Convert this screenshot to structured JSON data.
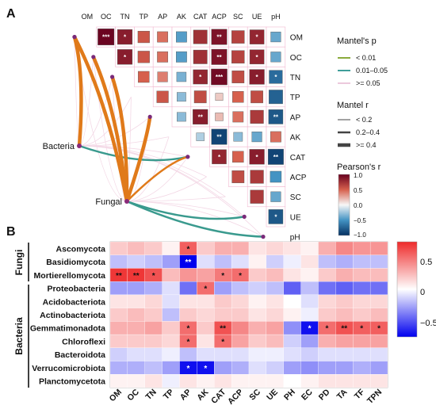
{
  "panel_a": {
    "label": "A",
    "vars": [
      "OM",
      "OC",
      "TN",
      "TP",
      "AP",
      "AK",
      "CAT",
      "ACP",
      "SC",
      "UE",
      "pH"
    ],
    "nodes": [
      "Bacteria",
      "Fungal"
    ],
    "mantel_p_title": "Mantel's p",
    "mantel_p_items": [
      {
        "label": "< 0.01",
        "color": "#8bab3c"
      },
      {
        "label": "0.01–0.05",
        "color": "#3f9e9a"
      },
      {
        "label": ">= 0.05",
        "color": "#f2d9e6"
      }
    ],
    "mantel_r_title": "Mantel r",
    "mantel_r_items": [
      "< 0.2",
      "0.2–0.4",
      ">= 0.4"
    ],
    "colorbar_title": "Pearson's r",
    "colorbar_ticks": [
      "1.0",
      "0.5",
      "0.0",
      "−0.5",
      "−1.0"
    ]
  },
  "panel_b": {
    "label": "B",
    "groups": [
      {
        "label": "Fungi"
      },
      {
        "label": "Bacteria"
      }
    ],
    "colorbar_ticks": [
      "0.5",
      "0",
      "−0.5"
    ]
  },
  "chart_data": [
    {
      "type": "heatmap",
      "panel": "A",
      "description_of_layout": "upper-triangle correlation matrix",
      "labels": [
        "OM",
        "OC",
        "TN",
        "TP",
        "AP",
        "AK",
        "CAT",
        "ACP",
        "SC",
        "UE",
        "pH"
      ],
      "cells": [
        {
          "r": 0,
          "c": 1,
          "v": 0.98,
          "sig": "***"
        },
        {
          "r": 0,
          "c": 2,
          "v": 0.85,
          "sig": "*"
        },
        {
          "r": 0,
          "c": 3,
          "v": 0.55,
          "sig": ""
        },
        {
          "r": 0,
          "c": 4,
          "v": 0.45,
          "sig": ""
        },
        {
          "r": 0,
          "c": 5,
          "v": -0.45,
          "sig": ""
        },
        {
          "r": 0,
          "c": 6,
          "v": 0.75,
          "sig": ""
        },
        {
          "r": 0,
          "c": 7,
          "v": 0.9,
          "sig": "**"
        },
        {
          "r": 0,
          "c": 8,
          "v": 0.65,
          "sig": ""
        },
        {
          "r": 0,
          "c": 9,
          "v": 0.8,
          "sig": "*"
        },
        {
          "r": 0,
          "c": 10,
          "v": -0.4,
          "sig": ""
        },
        {
          "r": 1,
          "c": 2,
          "v": 0.85,
          "sig": "*"
        },
        {
          "r": 1,
          "c": 3,
          "v": 0.55,
          "sig": ""
        },
        {
          "r": 1,
          "c": 4,
          "v": 0.45,
          "sig": ""
        },
        {
          "r": 1,
          "c": 5,
          "v": -0.45,
          "sig": ""
        },
        {
          "r": 1,
          "c": 6,
          "v": 0.75,
          "sig": ""
        },
        {
          "r": 1,
          "c": 7,
          "v": 0.9,
          "sig": "**"
        },
        {
          "r": 1,
          "c": 8,
          "v": 0.65,
          "sig": ""
        },
        {
          "r": 1,
          "c": 9,
          "v": 0.8,
          "sig": "*"
        },
        {
          "r": 1,
          "c": 10,
          "v": -0.4,
          "sig": ""
        },
        {
          "r": 2,
          "c": 3,
          "v": 0.5,
          "sig": ""
        },
        {
          "r": 2,
          "c": 4,
          "v": 0.4,
          "sig": ""
        },
        {
          "r": 2,
          "c": 5,
          "v": -0.35,
          "sig": ""
        },
        {
          "r": 2,
          "c": 6,
          "v": 0.8,
          "sig": "*"
        },
        {
          "r": 2,
          "c": 7,
          "v": 0.95,
          "sig": "***"
        },
        {
          "r": 2,
          "c": 8,
          "v": 0.6,
          "sig": ""
        },
        {
          "r": 2,
          "c": 9,
          "v": 0.85,
          "sig": "*"
        },
        {
          "r": 2,
          "c": 10,
          "v": -0.7,
          "sig": "*"
        },
        {
          "r": 3,
          "c": 4,
          "v": 0.55,
          "sig": ""
        },
        {
          "r": 3,
          "c": 5,
          "v": -0.3,
          "sig": ""
        },
        {
          "r": 3,
          "c": 6,
          "v": 0.6,
          "sig": ""
        },
        {
          "r": 3,
          "c": 7,
          "v": 0.15,
          "sig": ""
        },
        {
          "r": 3,
          "c": 8,
          "v": 0.5,
          "sig": ""
        },
        {
          "r": 3,
          "c": 9,
          "v": 0.6,
          "sig": ""
        },
        {
          "r": 3,
          "c": 10,
          "v": -0.75,
          "sig": ""
        },
        {
          "r": 4,
          "c": 5,
          "v": -0.3,
          "sig": ""
        },
        {
          "r": 4,
          "c": 6,
          "v": 0.85,
          "sig": "**"
        },
        {
          "r": 4,
          "c": 7,
          "v": 0.2,
          "sig": ""
        },
        {
          "r": 4,
          "c": 8,
          "v": 0.45,
          "sig": ""
        },
        {
          "r": 4,
          "c": 9,
          "v": 0.7,
          "sig": ""
        },
        {
          "r": 4,
          "c": 10,
          "v": -0.8,
          "sig": "**"
        },
        {
          "r": 5,
          "c": 6,
          "v": -0.2,
          "sig": ""
        },
        {
          "r": 5,
          "c": 7,
          "v": -0.9,
          "sig": "**"
        },
        {
          "r": 5,
          "c": 8,
          "v": -0.3,
          "sig": ""
        },
        {
          "r": 5,
          "c": 9,
          "v": -0.4,
          "sig": ""
        },
        {
          "r": 5,
          "c": 10,
          "v": 0.45,
          "sig": ""
        },
        {
          "r": 6,
          "c": 7,
          "v": 0.8,
          "sig": "*"
        },
        {
          "r": 6,
          "c": 8,
          "v": 0.5,
          "sig": ""
        },
        {
          "r": 6,
          "c": 9,
          "v": 0.85,
          "sig": "*"
        },
        {
          "r": 6,
          "c": 10,
          "v": -0.9,
          "sig": "**"
        },
        {
          "r": 7,
          "c": 8,
          "v": 0.6,
          "sig": ""
        },
        {
          "r": 7,
          "c": 9,
          "v": 0.7,
          "sig": ""
        },
        {
          "r": 7,
          "c": 10,
          "v": -0.5,
          "sig": ""
        },
        {
          "r": 8,
          "c": 9,
          "v": 0.7,
          "sig": ""
        },
        {
          "r": 8,
          "c": 10,
          "v": -0.4,
          "sig": ""
        },
        {
          "r": 9,
          "c": 10,
          "v": -0.8,
          "sig": "*"
        }
      ],
      "mantel_links": [
        {
          "from": "Bacteria",
          "to": "OM",
          "p": "<0.01",
          "r": ">=0.4"
        },
        {
          "from": "Bacteria",
          "to": "CAT",
          "p": "0.01–0.05",
          "r": "0.2–0.4"
        },
        {
          "from": "Fungal",
          "to": "OM",
          "p": "<0.01",
          "r": ">=0.4"
        },
        {
          "from": "Fungal",
          "to": "OC",
          "p": "<0.01",
          "r": ">=0.4"
        },
        {
          "from": "Fungal",
          "to": "TN",
          "p": "<0.01",
          "r": ">=0.4"
        },
        {
          "from": "Fungal",
          "to": "AP",
          "p": "<0.01",
          "r": ">=0.4"
        },
        {
          "from": "Fungal",
          "to": "CAT",
          "p": "<0.01",
          "r": "0.2–0.4"
        },
        {
          "from": "Fungal",
          "to": "UE",
          "p": "0.01–0.05",
          "r": "0.2–0.4"
        },
        {
          "from": "Fungal",
          "to": "pH",
          "p": "0.01–0.05",
          "r": "0.2–0.4"
        }
      ]
    },
    {
      "type": "heatmap",
      "panel": "B",
      "x": [
        "OM",
        "OC",
        "TN",
        "TP",
        "AP",
        "AK",
        "CAT",
        "ACP",
        "SC",
        "UE",
        "PH",
        "EC",
        "PD",
        "TA",
        "TF",
        "TPN"
      ],
      "y": [
        "Ascomycota",
        "Basidiomycota",
        "Mortierellomycota",
        "Proteobacteria",
        "Acidobacteriota",
        "Actinobacteriota",
        "Gemmatimonadota",
        "Chloroflexi",
        "Bacteroidota",
        "Verrucomicrobiota",
        "Planctomycetota"
      ],
      "values": [
        [
          0.2,
          0.25,
          0.2,
          0.05,
          0.6,
          0.2,
          0.3,
          0.3,
          0.1,
          0.15,
          0.1,
          0.05,
          0.3,
          0.45,
          0.4,
          0.4
        ],
        [
          -0.2,
          -0.15,
          -0.2,
          -0.3,
          -0.85,
          -0.1,
          -0.2,
          -0.1,
          0.05,
          -0.15,
          -0.05,
          0.1,
          -0.2,
          -0.25,
          -0.2,
          -0.2
        ],
        [
          0.75,
          0.75,
          0.65,
          0.25,
          0.4,
          0.35,
          0.5,
          0.55,
          0.2,
          0.25,
          0.1,
          0.05,
          0.2,
          0.3,
          0.25,
          0.25
        ],
        [
          -0.3,
          -0.3,
          -0.25,
          -0.1,
          -0.45,
          0.55,
          -0.3,
          -0.2,
          -0.15,
          -0.2,
          -0.5,
          -0.2,
          -0.45,
          -0.5,
          -0.45,
          -0.45
        ],
        [
          0.1,
          0.1,
          0.15,
          -0.1,
          0.1,
          0.1,
          0.2,
          0.15,
          0.05,
          0.1,
          0.0,
          -0.1,
          0.15,
          0.2,
          0.15,
          0.15
        ],
        [
          0.2,
          0.25,
          0.2,
          -0.2,
          0.2,
          0.15,
          0.2,
          0.2,
          0.1,
          0.15,
          0.05,
          -0.05,
          0.2,
          0.25,
          0.2,
          0.25
        ],
        [
          0.3,
          0.3,
          0.35,
          0.2,
          0.55,
          0.2,
          0.65,
          0.45,
          0.3,
          0.35,
          -0.35,
          -0.75,
          0.55,
          0.65,
          0.6,
          0.6
        ],
        [
          0.2,
          0.2,
          0.2,
          0.15,
          0.55,
          0.1,
          0.55,
          0.35,
          0.2,
          0.25,
          -0.15,
          -0.3,
          0.3,
          0.35,
          0.35,
          0.35
        ],
        [
          -0.15,
          -0.1,
          -0.1,
          -0.05,
          -0.2,
          -0.1,
          -0.1,
          -0.1,
          -0.05,
          -0.05,
          -0.1,
          -0.15,
          -0.1,
          -0.1,
          -0.1,
          -0.1
        ],
        [
          -0.25,
          -0.25,
          -0.2,
          -0.3,
          -0.75,
          -0.75,
          -0.3,
          -0.25,
          -0.1,
          -0.15,
          -0.3,
          -0.35,
          -0.3,
          -0.3,
          -0.25,
          -0.3
        ],
        [
          0.05,
          0.05,
          0.1,
          -0.05,
          0.1,
          0.05,
          0.1,
          0.05,
          0.05,
          0.05,
          0.0,
          0.05,
          0.1,
          0.1,
          0.1,
          0.1
        ]
      ],
      "significance": [
        [
          "",
          "",
          "",
          "",
          "*",
          "",
          "",
          "",
          "",
          "",
          "",
          "",
          "",
          "",
          "",
          ""
        ],
        [
          "",
          "",
          "",
          "",
          "**",
          "",
          "",
          "",
          "",
          "",
          "",
          "",
          "",
          "",
          "",
          ""
        ],
        [
          "**",
          "**",
          "*",
          "",
          "",
          "",
          "*",
          "*",
          "",
          "",
          "",
          "",
          "",
          "",
          "",
          ""
        ],
        [
          "",
          "",
          "",
          "",
          "",
          "*",
          "",
          "",
          "",
          "",
          "",
          "",
          "",
          "",
          "",
          ""
        ],
        [
          "",
          "",
          "",
          "",
          "",
          "",
          "",
          "",
          "",
          "",
          "",
          "",
          "",
          "",
          "",
          ""
        ],
        [
          "",
          "",
          "",
          "",
          "",
          "",
          "",
          "",
          "",
          "",
          "",
          "",
          "",
          "",
          "",
          ""
        ],
        [
          "",
          "",
          "",
          "",
          "*",
          "",
          "**",
          "",
          "",
          "",
          "",
          "*",
          "*",
          "**",
          "*",
          "*"
        ],
        [
          "",
          "",
          "",
          "",
          "*",
          "",
          "*",
          "",
          "",
          "",
          "",
          "",
          "",
          "",
          "",
          ""
        ],
        [
          "",
          "",
          "",
          "",
          "",
          "",
          "",
          "",
          "",
          "",
          "",
          "",
          "",
          "",
          "",
          ""
        ],
        [
          "",
          "",
          "",
          "",
          "*",
          "*",
          "",
          "",
          "",
          "",
          "",
          "",
          "",
          "",
          "",
          ""
        ],
        [
          "",
          "",
          "",
          "",
          "",
          "",
          "",
          "",
          "",
          "",
          "",
          "",
          "",
          "",
          "",
          ""
        ]
      ],
      "color_range": [
        -0.8,
        0.8
      ]
    }
  ]
}
